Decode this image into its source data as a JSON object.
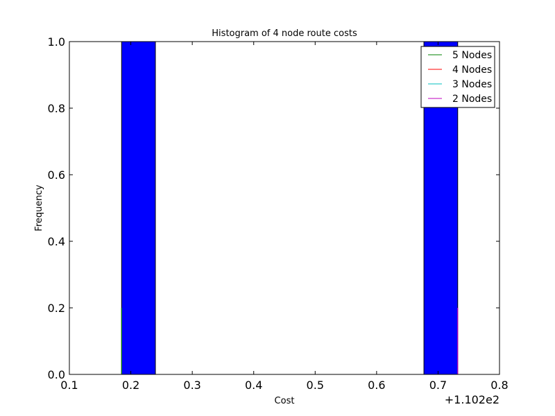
{
  "chart_data": {
    "type": "bar",
    "title": "Histogram of 4 node route costs",
    "xlabel": "Cost",
    "ylabel": "Frequency",
    "xlim": [
      0.1,
      0.8
    ],
    "ylim": [
      0.0,
      1.0
    ],
    "x_offset_label": "+1.102e2",
    "x_ticks": [
      "0.1",
      "0.2",
      "0.3",
      "0.4",
      "0.5",
      "0.6",
      "0.7",
      "0.8"
    ],
    "x_tick_values": [
      0.1,
      0.2,
      0.3,
      0.4,
      0.5,
      0.6,
      0.7,
      0.8
    ],
    "y_ticks": [
      "0.0",
      "0.2",
      "0.4",
      "0.6",
      "0.8",
      "1.0"
    ],
    "y_tick_values": [
      0.0,
      0.2,
      0.4,
      0.6,
      0.8,
      1.0
    ],
    "grid": false,
    "legend_placement": "top-right",
    "bars": [
      {
        "x0": 0.185,
        "x1": 0.24,
        "value": 1.0,
        "color": "#0000ff"
      },
      {
        "x0": 0.677,
        "x1": 0.732,
        "value": 1.0,
        "color": "#0000ff"
      }
    ],
    "thin_bars": [
      {
        "x": 0.185,
        "value": 0.2,
        "color": "#008000"
      },
      {
        "x": 0.732,
        "value": 0.2,
        "color": "#bf00bf"
      }
    ],
    "series": [
      {
        "name": "5 Nodes",
        "color": "#008000"
      },
      {
        "name": "4 Nodes",
        "color": "#ff0000"
      },
      {
        "name": "3 Nodes",
        "color": "#00bfbf"
      },
      {
        "name": "2 Nodes",
        "color": "#bf00bf"
      }
    ]
  }
}
